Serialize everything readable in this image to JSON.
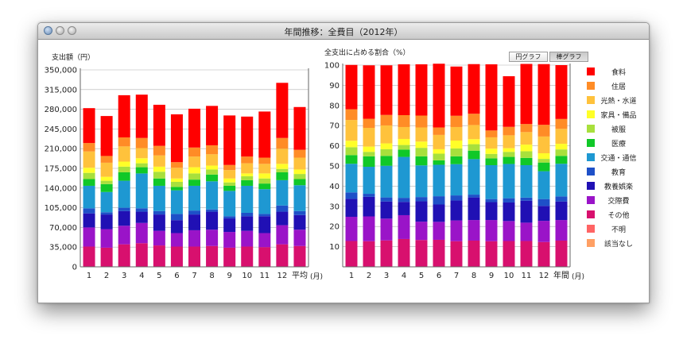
{
  "window": {
    "title": "年間推移：全費目（2012年）"
  },
  "toolbar": {
    "pie_button": "円グラフ",
    "bar_button": "棒グラフ",
    "active": "bar"
  },
  "categories": [
    {
      "name": "食料",
      "color": "#ff0000"
    },
    {
      "name": "住居",
      "color": "#ff8c26"
    },
    {
      "name": "光熱・水道",
      "color": "#ffc23c"
    },
    {
      "name": "家具・備品",
      "color": "#ffff28"
    },
    {
      "name": "被服",
      "color": "#a8e03c"
    },
    {
      "name": "医療",
      "color": "#10c828"
    },
    {
      "name": "交通・通信",
      "color": "#1e98d2"
    },
    {
      "name": "教育",
      "color": "#1e50c8"
    },
    {
      "name": "教養娯楽",
      "color": "#2010b4"
    },
    {
      "name": "交際費",
      "color": "#9a14c8"
    },
    {
      "name": "その他",
      "color": "#d8106e"
    },
    {
      "name": "不明",
      "color": "#ff6464"
    },
    {
      "name": "該当なし",
      "color": "#ffa064"
    }
  ],
  "chart_data": [
    {
      "type": "bar",
      "stacked": true,
      "ylabel": "支出額（円）",
      "xunit": "(月)",
      "ylim": [
        0,
        350000
      ],
      "yticks": [
        "0",
        "35,000",
        "70,000",
        "105,000",
        "140,000",
        "175,000",
        "210,000",
        "245,000",
        "280,000",
        "315,000",
        "350,000"
      ],
      "categories": [
        "1",
        "2",
        "3",
        "4",
        "5",
        "6",
        "7",
        "8",
        "9",
        "10",
        "11",
        "12",
        "平均"
      ],
      "series": [
        {
          "name": "その他",
          "values": [
            36000,
            34000,
            40000,
            42000,
            38000,
            36000,
            36000,
            37000,
            34000,
            36000,
            35000,
            40000,
            37000
          ]
        },
        {
          "name": "交際費",
          "values": [
            34000,
            33000,
            33000,
            36000,
            26000,
            24000,
            29000,
            29000,
            28000,
            28000,
            25000,
            34000,
            29000
          ]
        },
        {
          "name": "教養娯楽",
          "values": [
            25000,
            26000,
            26000,
            20000,
            29000,
            23000,
            28000,
            32000,
            24000,
            26000,
            30000,
            24000,
            26000
          ]
        },
        {
          "name": "教育",
          "values": [
            9000,
            4000,
            6000,
            6000,
            6000,
            11000,
            7000,
            4000,
            4000,
            6000,
            4000,
            11000,
            7000
          ]
        },
        {
          "name": "交通・通信",
          "values": [
            40000,
            36000,
            48000,
            62000,
            45000,
            42000,
            44000,
            50000,
            45000,
            48000,
            44000,
            45000,
            46000
          ]
        },
        {
          "name": "医療",
          "values": [
            12000,
            14000,
            15000,
            11000,
            13000,
            6000,
            11000,
            12000,
            9000,
            10000,
            10000,
            14000,
            11000
          ]
        },
        {
          "name": "被服",
          "values": [
            11000,
            6000,
            10000,
            7000,
            12000,
            9000,
            11000,
            9000,
            6000,
            7000,
            9000,
            6000,
            9000
          ]
        },
        {
          "name": "家具・備品",
          "values": [
            9000,
            7000,
            9000,
            9000,
            9000,
            6000,
            11000,
            7000,
            7000,
            5000,
            9000,
            9000,
            8000
          ]
        },
        {
          "name": "光熱・水道",
          "values": [
            29000,
            25000,
            27000,
            18000,
            20000,
            19000,
            19000,
            20000,
            15000,
            18000,
            17000,
            27000,
            21000
          ]
        },
        {
          "name": "住居",
          "values": [
            15000,
            12000,
            16000,
            18000,
            17000,
            10000,
            16000,
            16000,
            9000,
            12000,
            11000,
            19000,
            14000
          ]
        },
        {
          "name": "食料",
          "values": [
            62000,
            71000,
            75000,
            77000,
            73000,
            85000,
            69000,
            70000,
            88000,
            71000,
            82000,
            98000,
            76000
          ]
        },
        {
          "name": "不明",
          "values": [
            0,
            0,
            0,
            0,
            0,
            0,
            0,
            0,
            0,
            0,
            0,
            0,
            0
          ]
        },
        {
          "name": "該当なし",
          "values": [
            0,
            0,
            0,
            0,
            0,
            0,
            0,
            0,
            0,
            0,
            0,
            0,
            0
          ]
        }
      ]
    },
    {
      "type": "bar",
      "stacked": true,
      "ylabel": "全支出に占める割合（%）",
      "xunit": "(月)",
      "ylim": [
        0,
        100
      ],
      "yticks": [
        "10",
        "20",
        "30",
        "40",
        "50",
        "60",
        "70",
        "80",
        "90",
        "100"
      ],
      "categories": [
        "1",
        "2",
        "3",
        "4",
        "5",
        "6",
        "7",
        "8",
        "9",
        "10",
        "11",
        "12",
        "年間"
      ],
      "series": [
        {
          "name": "その他",
          "values": [
            12.8,
            12.7,
            13.1,
            13.8,
            13.3,
            13.4,
            12.7,
            13.0,
            12.7,
            12.8,
            12.8,
            12.3,
            13.0
          ]
        },
        {
          "name": "交際費",
          "values": [
            12.0,
            12.3,
            10.8,
            11.8,
            9.1,
            8.9,
            10.3,
            10.2,
            10.5,
            9.9,
            9.1,
            10.5,
            10.2
          ]
        },
        {
          "name": "教養娯楽",
          "values": [
            8.9,
            9.7,
            8.5,
            6.6,
            10.1,
            8.6,
            9.9,
            11.2,
            8.9,
            9.2,
            10.9,
            7.4,
            9.2
          ]
        },
        {
          "name": "教育",
          "values": [
            3.2,
            1.5,
            2.0,
            2.0,
            2.1,
            4.1,
            2.5,
            1.4,
            1.5,
            2.1,
            1.5,
            3.4,
            2.5
          ]
        },
        {
          "name": "交通・通信",
          "values": [
            14.2,
            13.4,
            15.7,
            20.3,
            15.7,
            15.6,
            15.5,
            17.6,
            16.8,
            17.0,
            16.1,
            13.8,
            16.2
          ]
        },
        {
          "name": "医療",
          "values": [
            4.3,
            5.2,
            4.9,
            3.6,
            4.5,
            2.2,
            3.9,
            4.2,
            3.4,
            3.5,
            3.6,
            4.3,
            3.9
          ]
        },
        {
          "name": "被服",
          "values": [
            3.9,
            2.2,
            3.3,
            2.3,
            4.2,
            3.3,
            3.9,
            3.2,
            2.2,
            2.5,
            3.3,
            1.8,
            3.2
          ]
        },
        {
          "name": "家具・備品",
          "values": [
            3.2,
            2.6,
            2.9,
            3.0,
            3.1,
            2.2,
            3.9,
            2.5,
            2.6,
            1.8,
            3.3,
            2.8,
            2.8
          ]
        },
        {
          "name": "光熱・水道",
          "values": [
            10.3,
            9.3,
            8.9,
            5.9,
            7.0,
            7.1,
            6.7,
            7.0,
            5.6,
            6.4,
            6.2,
            8.3,
            7.4
          ]
        },
        {
          "name": "住居",
          "values": [
            5.3,
            4.5,
            5.2,
            5.9,
            5.9,
            3.7,
            5.6,
            5.6,
            3.4,
            4.2,
            4.0,
            5.8,
            4.9
          ]
        },
        {
          "name": "食料",
          "values": [
            22.0,
            26.5,
            24.6,
            25.2,
            25.4,
            31.6,
            24.4,
            24.6,
            32.8,
            25.1,
            29.8,
            30.1,
            26.7
          ]
        },
        {
          "name": "不明",
          "values": [
            0,
            0,
            0,
            0,
            0,
            0,
            0,
            0,
            0,
            0,
            0,
            0,
            0
          ]
        },
        {
          "name": "該当なし",
          "values": [
            0,
            0,
            0,
            0,
            0,
            0,
            0,
            0,
            0,
            0,
            0,
            0,
            0
          ]
        }
      ]
    }
  ]
}
